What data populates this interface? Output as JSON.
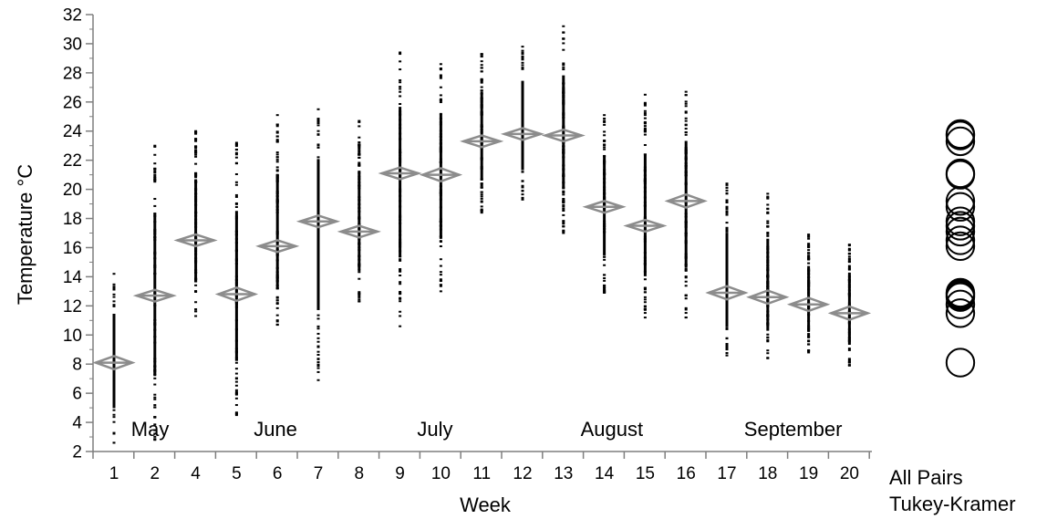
{
  "chart_data": {
    "type": "scatter",
    "subtype": "oneway-means-diamonds-with-tukey-kramer-circles",
    "xlabel": "Week",
    "ylabel": "Temperature °C",
    "ylim": [
      2,
      32
    ],
    "y_ticks": [
      2,
      4,
      6,
      8,
      10,
      12,
      14,
      16,
      18,
      20,
      22,
      24,
      26,
      28,
      30,
      32
    ],
    "grid": false,
    "categories": [
      "1",
      "2",
      "4",
      "5",
      "6",
      "7",
      "8",
      "9",
      "10",
      "11",
      "12",
      "13",
      "14",
      "15",
      "16",
      "17",
      "18",
      "19",
      "20"
    ],
    "groups": [
      {
        "week": "1",
        "mean": 8.1,
        "min": 2.6,
        "max": 14.2,
        "ci_half": 0.45
      },
      {
        "week": "2",
        "mean": 12.7,
        "min": 2.8,
        "max": 23.0,
        "ci_half": 0.4
      },
      {
        "week": "4",
        "mean": 16.5,
        "min": 11.3,
        "max": 24.0,
        "ci_half": 0.4
      },
      {
        "week": "5",
        "mean": 12.8,
        "min": 4.5,
        "max": 23.2,
        "ci_half": 0.45
      },
      {
        "week": "6",
        "mean": 16.1,
        "min": 10.7,
        "max": 25.1,
        "ci_half": 0.4
      },
      {
        "week": "7",
        "mean": 17.8,
        "min": 6.9,
        "max": 25.5,
        "ci_half": 0.4
      },
      {
        "week": "8",
        "mean": 17.1,
        "min": 12.3,
        "max": 24.7,
        "ci_half": 0.4
      },
      {
        "week": "9",
        "mean": 21.1,
        "min": 10.6,
        "max": 29.4,
        "ci_half": 0.4
      },
      {
        "week": "10",
        "mean": 21.0,
        "min": 13.0,
        "max": 28.6,
        "ci_half": 0.45
      },
      {
        "week": "11",
        "mean": 23.3,
        "min": 18.4,
        "max": 29.3,
        "ci_half": 0.4
      },
      {
        "week": "12",
        "mean": 23.8,
        "min": 19.3,
        "max": 29.8,
        "ci_half": 0.4
      },
      {
        "week": "13",
        "mean": 23.7,
        "min": 17.0,
        "max": 31.2,
        "ci_half": 0.4
      },
      {
        "week": "14",
        "mean": 18.8,
        "min": 12.9,
        "max": 25.1,
        "ci_half": 0.4
      },
      {
        "week": "15",
        "mean": 17.5,
        "min": 11.2,
        "max": 26.5,
        "ci_half": 0.4
      },
      {
        "week": "16",
        "mean": 19.2,
        "min": 11.2,
        "max": 26.7,
        "ci_half": 0.45
      },
      {
        "week": "17",
        "mean": 12.9,
        "min": 8.6,
        "max": 20.4,
        "ci_half": 0.45
      },
      {
        "week": "18",
        "mean": 12.6,
        "min": 8.4,
        "max": 19.7,
        "ci_half": 0.45
      },
      {
        "week": "19",
        "mean": 12.1,
        "min": 8.8,
        "max": 16.9,
        "ci_half": 0.45
      },
      {
        "week": "20",
        "mean": 11.5,
        "min": 7.9,
        "max": 16.2,
        "ci_half": 0.45
      }
    ],
    "month_labels": [
      {
        "text": "May",
        "week": "2"
      },
      {
        "text": "June",
        "week": "6"
      },
      {
        "text": "July",
        "week": "10"
      },
      {
        "text": "August",
        "week": "14"
      },
      {
        "text": "September",
        "week": "18"
      }
    ],
    "comparison_circles": {
      "label_line1": "All Pairs",
      "label_line2": "Tukey-Kramer",
      "centers": [
        8.1,
        11.5,
        12.1,
        12.6,
        12.7,
        12.8,
        12.9,
        16.1,
        16.5,
        17.1,
        17.5,
        17.8,
        18.8,
        19.2,
        21.0,
        21.1,
        23.3,
        23.7,
        23.8
      ],
      "radius": 0.95
    },
    "colors": {
      "points": "#000000",
      "diamond": "#8c8c8c",
      "axis": "#7f7f7f",
      "circle": "#000000"
    }
  }
}
